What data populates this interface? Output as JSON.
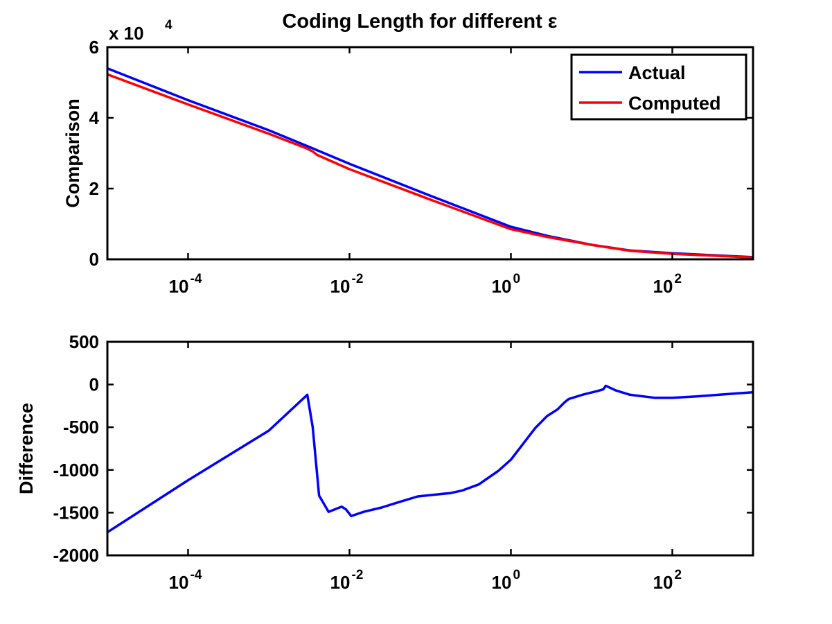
{
  "chart_data": [
    {
      "type": "line",
      "title": "Coding Length for different ε",
      "xlabel": "",
      "ylabel": "Comparison",
      "xscale": "log",
      "xlim": [
        1e-05,
        1000
      ],
      "ylim": [
        0,
        60000
      ],
      "y_exponent_label": "x 10",
      "y_exponent_power": "4",
      "yticks": [
        0,
        20000,
        40000,
        60000
      ],
      "ytick_labels": [
        "0",
        "2",
        "4",
        "6"
      ],
      "xticks": [
        0.0001,
        0.01,
        1,
        100
      ],
      "xtick_bases": [
        "10",
        "10",
        "10",
        "10"
      ],
      "xtick_powers": [
        "-4",
        "-2",
        "0",
        "2"
      ],
      "grid": false,
      "legend_position": "top-right",
      "series": [
        {
          "name": "Actual",
          "color": "#0000ff",
          "x": [
            1e-05,
            0.0001,
            0.001,
            0.003,
            0.01,
            0.1,
            1,
            3,
            10,
            30,
            100,
            1000
          ],
          "y": [
            54000,
            45000,
            36500,
            32000,
            27000,
            18000,
            9200,
            6500,
            4100,
            2500,
            1700,
            600
          ]
        },
        {
          "name": "Computed",
          "color": "#ff0000",
          "x": [
            1e-05,
            0.0001,
            0.001,
            0.003,
            0.0035,
            0.004,
            0.01,
            0.1,
            1,
            3,
            10,
            30,
            100,
            1000
          ],
          "y": [
            52300,
            43800,
            35500,
            31300,
            30500,
            29500,
            25500,
            16900,
            8500,
            6200,
            4100,
            2400,
            1550,
            500
          ]
        }
      ]
    },
    {
      "type": "line",
      "title": "",
      "xlabel": "",
      "ylabel": "Difference",
      "xscale": "log",
      "xlim": [
        1e-05,
        1000
      ],
      "ylim": [
        -2000,
        500
      ],
      "yticks": [
        -2000,
        -1500,
        -1000,
        -500,
        0,
        500
      ],
      "ytick_labels": [
        "-2000",
        "-1500",
        "-1000",
        "-500",
        "0",
        "500"
      ],
      "xticks": [
        0.0001,
        0.01,
        1,
        100
      ],
      "xtick_bases": [
        "10",
        "10",
        "10",
        "10"
      ],
      "xtick_powers": [
        "-4",
        "-2",
        "0",
        "2"
      ],
      "grid": false,
      "series": [
        {
          "color": "#0000ff",
          "x": [
            1e-05,
            0.0001,
            0.001,
            0.003,
            0.0035,
            0.0042,
            0.0055,
            0.008,
            0.009,
            0.0105,
            0.015,
            0.025,
            0.04,
            0.07,
            0.1,
            0.18,
            0.25,
            0.4,
            0.7,
            1,
            2,
            2.8,
            3.8,
            4.6,
            5.2,
            8,
            12,
            14,
            15,
            20,
            30,
            60,
            100,
            200,
            500,
            1000
          ],
          "y": [
            -1730,
            -1120,
            -540,
            -120,
            -500,
            -1300,
            -1490,
            -1430,
            -1460,
            -1540,
            -1490,
            -1440,
            -1380,
            -1310,
            -1295,
            -1270,
            -1240,
            -1170,
            -1010,
            -880,
            -510,
            -370,
            -290,
            -210,
            -170,
            -115,
            -75,
            -55,
            -15,
            -70,
            -120,
            -155,
            -155,
            -140,
            -110,
            -90
          ]
        }
      ]
    }
  ]
}
